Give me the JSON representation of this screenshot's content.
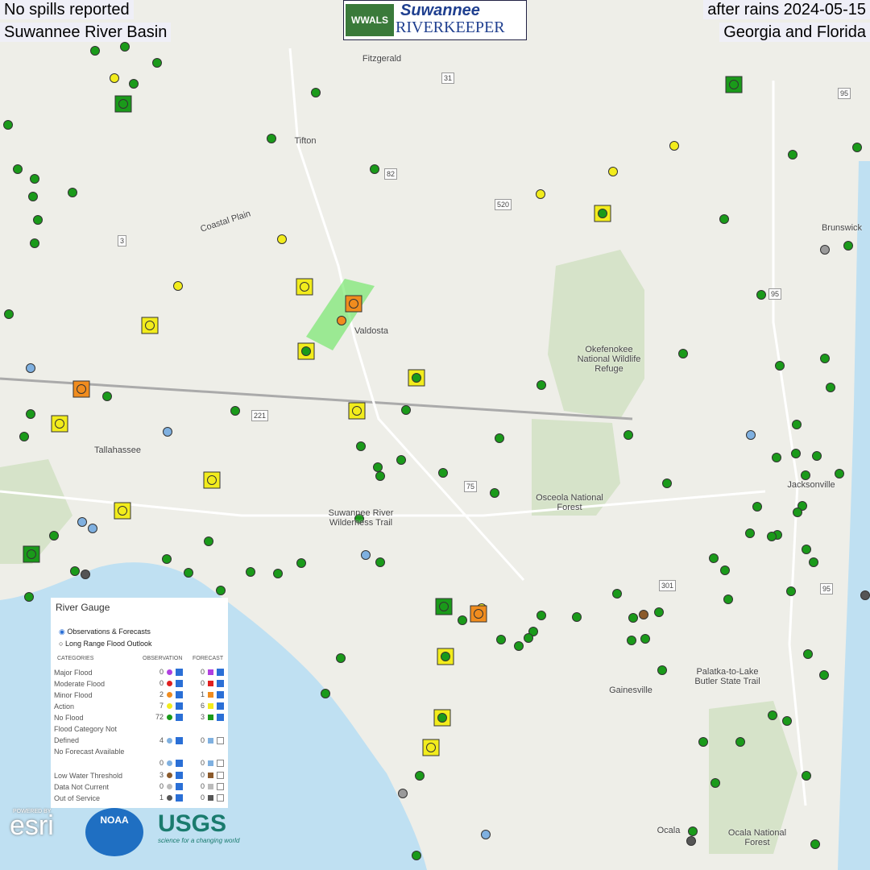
{
  "header": {
    "left_top": "No spills reported",
    "left_bottom": "Suwannee River Basin",
    "right_top": "after rains 2024-05-15",
    "right_bottom": "Georgia and Florida",
    "logo_badge": "WWALS",
    "logo_title": "Suwannee",
    "logo_subtitle": "RIVERKEEPER"
  },
  "map_labels": [
    "Fitzgerald",
    "Tifton",
    "Coastal Plain",
    "Valdosta",
    "Okefenokee National Wildlife Refuge",
    "Tallahassee",
    "Suwannee River Wilderness Trail",
    "Osceola National Forest",
    "Jacksonville",
    "Gainesville",
    "Palatka-to-Lake Butler State Trail",
    "Ocala",
    "Ocala National Forest",
    "Brunswick"
  ],
  "route_labels": [
    "31",
    "82",
    "520",
    "3",
    "95",
    "221",
    "75",
    "301",
    "95",
    "95"
  ],
  "legend": {
    "title": "River Gauge",
    "options": [
      "Observations & Forecasts",
      "Long Range Flood Outlook"
    ],
    "columns": [
      "CATEGORIES",
      "OBSERVATION",
      "FORECAST"
    ],
    "rows": [
      {
        "category": "Major Flood",
        "observation": 0,
        "forecast": 0
      },
      {
        "category": "Moderate Flood",
        "observation": 0,
        "forecast": 0
      },
      {
        "category": "Minor Flood",
        "observation": 2,
        "forecast": 1
      },
      {
        "category": "Action",
        "observation": 7,
        "forecast": 6
      },
      {
        "category": "No Flood",
        "observation": 72,
        "forecast": 3
      },
      {
        "category": "Flood Category Not Defined",
        "observation": 4,
        "forecast": 0
      },
      {
        "category": "No Forecast Available",
        "observation": 0,
        "forecast": 0
      },
      {
        "category": "Low Water Threshold",
        "observation": 3,
        "forecast": 0
      },
      {
        "category": "Data Not Current",
        "observation": 0,
        "forecast": 0
      },
      {
        "category": "Out of Service",
        "observation": 1,
        "forecast": 0
      }
    ]
  },
  "logos": {
    "esri_caption": "POWERED BY",
    "esri": "esri",
    "noaa": "NOAA",
    "usgs": "USGS",
    "usgs_tagline": "science for a changing world"
  }
}
